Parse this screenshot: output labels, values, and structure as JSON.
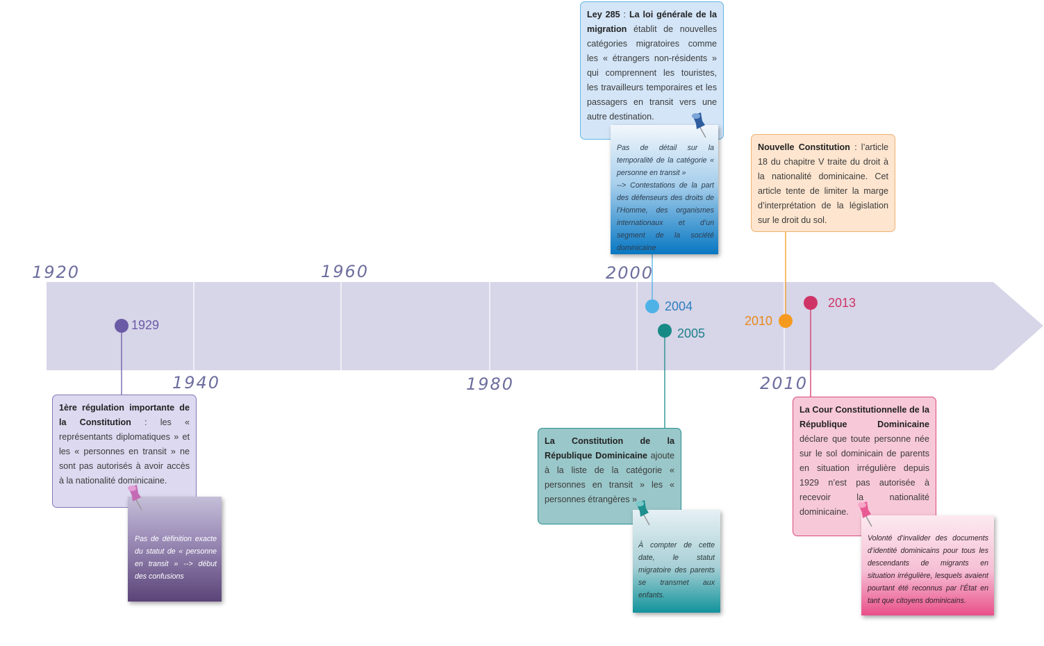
{
  "axis": {
    "years_top": [
      "1920",
      "1960",
      "2000"
    ],
    "years_bottom": [
      "1940",
      "1980",
      "2010"
    ]
  },
  "events": {
    "e1929": {
      "year": "1929",
      "color": "#6b5ba6"
    },
    "e2004": {
      "year": "2004",
      "color": "#4fb2e6",
      "label_color": "#2e7fc0"
    },
    "e2005": {
      "year": "2005",
      "color": "#178a86",
      "label_color": "#1c7f8a"
    },
    "e2010": {
      "year": "2010",
      "color": "#f59a1e",
      "label_color": "#e8891a"
    },
    "e2013": {
      "year": "2013",
      "color": "#cf3466",
      "label_color": "#cf3466"
    }
  },
  "boxes": {
    "b1929": {
      "title": "1ère régulation importante de la Constitution",
      "text": " : les « représentants diplomatiques » et les « personnes en transit » ne sont pas autorisés à avoir accès à la nationalité dominicaine."
    },
    "b2004": {
      "title": "Ley 285",
      "sep": " : ",
      "title2": "La loi générale de la migration",
      "text": " établit de nouvelles catégories migratoires comme les « étrangers non-résidents » qui comprennent les touristes, les travailleurs temporaires et les passagers en transit vers une autre destination."
    },
    "b2005": {
      "title": "La Constitution de la République Dominicaine",
      "text": " ajoute à la liste de la catégorie « personnes en transit » les « personnes étrangères »."
    },
    "b2010": {
      "title": "Nouvelle Constitution",
      "text": " : l’article 18 du chapitre V traite du droit à la nationalité dominicaine. Cet article tente de limiter la marge d’interprétation de la législation sur le droit du sol."
    },
    "b2013": {
      "title": "La Cour Constitutionnelle de la République Dominicaine",
      "text": " déclare que toute personne née sur le sol dominicain de parents en situation irrégulière depuis 1929 n’est pas autorisée à recevoir la nationalité dominicaine."
    }
  },
  "notes": {
    "n1929": "Pas de définition exacte du statut de « personne en transit » --> début des confusions",
    "n2004a": "Pas de détail sur la temporalité de la catégorie « personne en transit »",
    "n2004b": "--> Contestations de la part des défenseurs des droits de l’Homme, des organismes internationaux et d’un segment de la société dominicaine",
    "n2005": "À compter de cette date, le statut migratoire des parents se transmet aux enfants.",
    "n2013": "Volonté d’invalider des documents d’identité dominicains pour tous les descendants de migrants en situation irrégulière, lesquels avaient pourtant été reconnus par l’État en tant que citoyens dominicains."
  },
  "colors": {
    "band": "#d7d5e8",
    "year_text": "#6d6e9e",
    "purple_box": "#dcd9f0",
    "blue_box": "#d3e5f7",
    "teal_box": "#9ac7c9",
    "orange_box": "#fde5cf",
    "pink_box": "#f7c8d8"
  }
}
